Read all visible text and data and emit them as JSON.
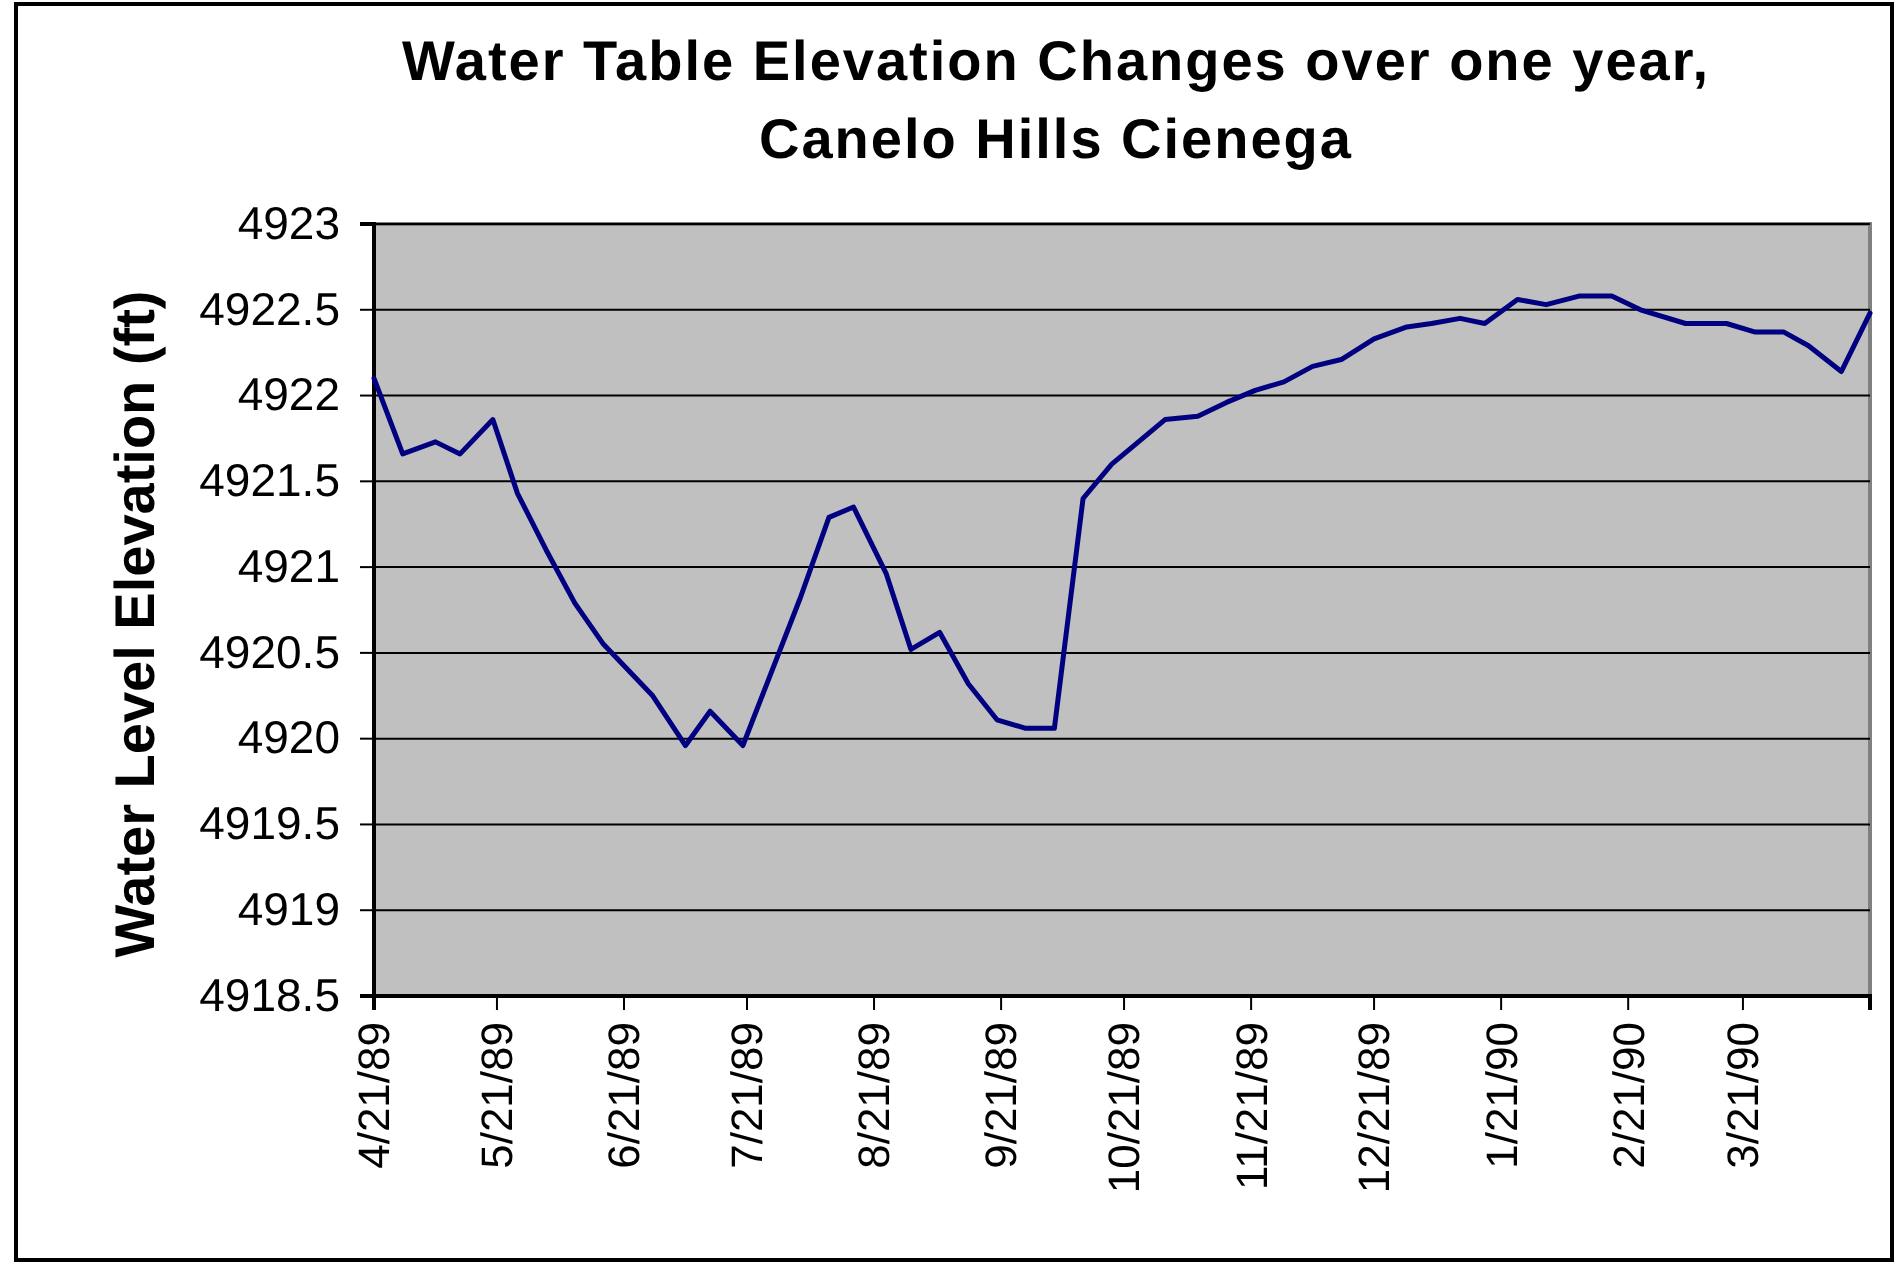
{
  "chart_data": {
    "type": "line",
    "title": "Water Table Elevation Changes over one year, Canelo Hills Cienega",
    "ylabel": "Water Level Elevation (ft)",
    "x": [
      "1989-04-21",
      "1989-04-28",
      "1989-05-06",
      "1989-05-12",
      "1989-05-20",
      "1989-05-26",
      "1989-06-02",
      "1989-06-09",
      "1989-06-16",
      "1989-06-28",
      "1989-07-06",
      "1989-07-12",
      "1989-07-20",
      "1989-08-03",
      "1989-08-10",
      "1989-08-16",
      "1989-08-24",
      "1989-08-30",
      "1989-09-06",
      "1989-09-13",
      "1989-09-20",
      "1989-09-27",
      "1989-10-04",
      "1989-10-11",
      "1989-10-18",
      "1989-10-24",
      "1989-10-31",
      "1989-11-08",
      "1989-11-15",
      "1989-11-22",
      "1989-11-29",
      "1989-12-06",
      "1989-12-13",
      "1989-12-21",
      "1989-12-29",
      "1990-01-04",
      "1990-01-11",
      "1990-01-17",
      "1990-01-25",
      "1990-02-01",
      "1990-02-09",
      "1990-02-17",
      "1990-02-24",
      "1990-03-07",
      "1990-03-17",
      "1990-03-24",
      "1990-03-31",
      "1990-04-06",
      "1990-04-14",
      "1990-04-21"
    ],
    "series": [
      {
        "color": "#000080",
        "values": [
          4922.1,
          4921.66,
          4921.73,
          4921.66,
          4921.86,
          4921.43,
          4921.1,
          4920.79,
          4920.55,
          4920.25,
          4919.96,
          4920.16,
          4919.96,
          4920.82,
          4921.29,
          4921.35,
          4920.96,
          4920.52,
          4920.62,
          4920.32,
          4920.11,
          4920.06,
          4920.06,
          4921.4,
          4921.6,
          4921.72,
          4921.86,
          4921.88,
          4921.96,
          4922.03,
          4922.08,
          4922.17,
          4922.21,
          4922.33,
          4922.4,
          4922.42,
          4922.45,
          4922.42,
          4922.56,
          4922.53,
          4922.58,
          4922.58,
          4922.5,
          4922.42,
          4922.42,
          4922.37,
          4922.37,
          4922.29,
          4922.14,
          4922.48
        ]
      }
    ],
    "xlim": [
      "1989-04-21",
      "1990-04-21"
    ],
    "xticks": [
      {
        "value": "1989-04-21",
        "label": "4/21/89"
      },
      {
        "value": "1989-05-21",
        "label": "5/21/89"
      },
      {
        "value": "1989-06-21",
        "label": "6/21/89"
      },
      {
        "value": "1989-07-21",
        "label": "7/21/89"
      },
      {
        "value": "1989-08-21",
        "label": "8/21/89"
      },
      {
        "value": "1989-09-21",
        "label": "9/21/89"
      },
      {
        "value": "1989-10-21",
        "label": "10/21/89"
      },
      {
        "value": "1989-11-21",
        "label": "11/21/89"
      },
      {
        "value": "1989-12-21",
        "label": "12/21/89"
      },
      {
        "value": "1990-01-21",
        "label": "1/21/90"
      },
      {
        "value": "1990-02-21",
        "label": "2/21/90"
      },
      {
        "value": "1990-03-21",
        "label": "3/21/90"
      },
      {
        "value": "1990-04-21",
        "label": null
      }
    ],
    "ylim": [
      4918.5,
      4923
    ],
    "yticks": [
      4918.5,
      4919,
      4919.5,
      4920,
      4920.5,
      4921,
      4921.5,
      4922,
      4922.5,
      4923
    ],
    "grid": "y",
    "line_style": "solid",
    "marker": "none"
  }
}
